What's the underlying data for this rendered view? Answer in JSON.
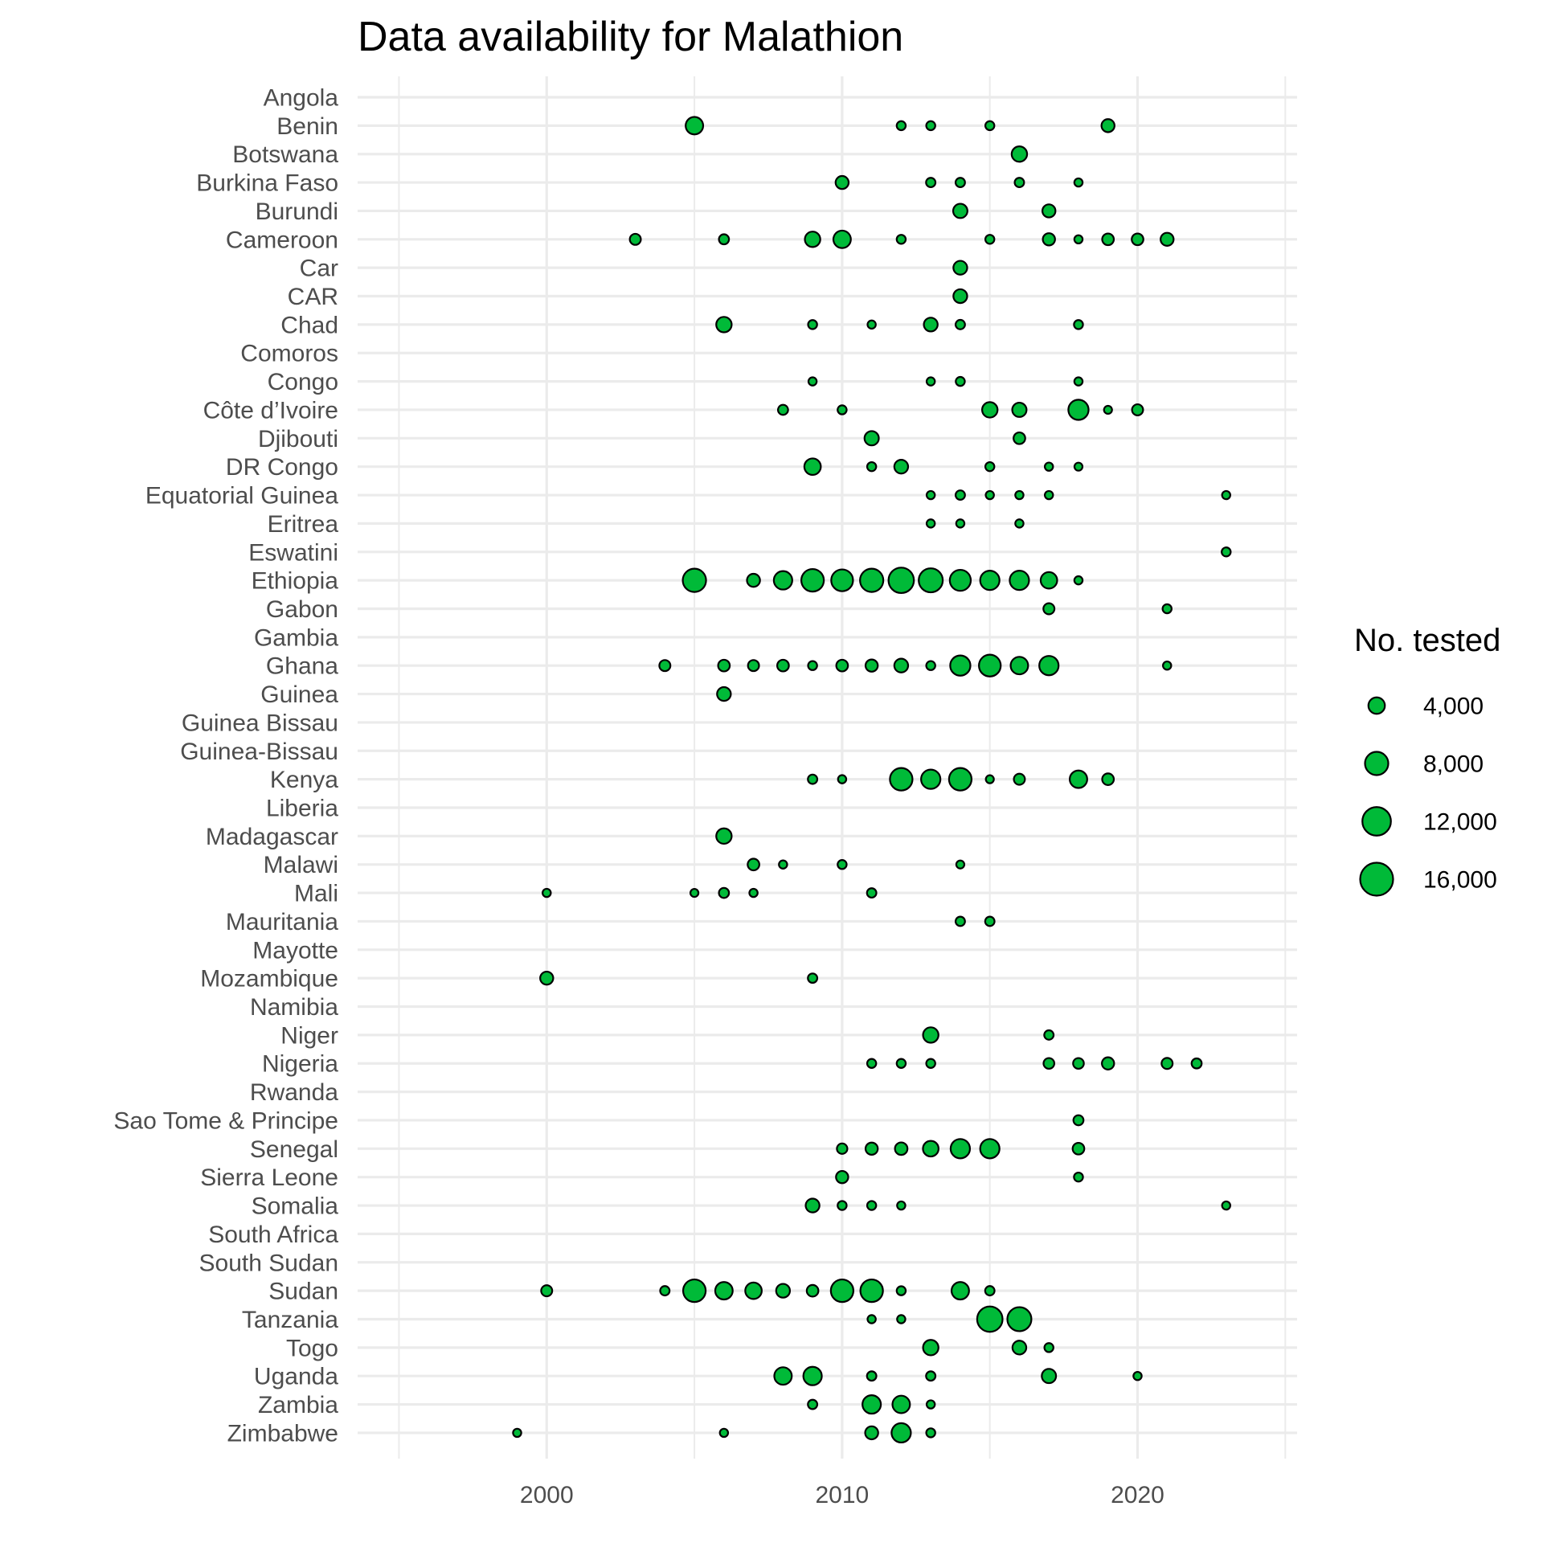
{
  "chart_data": {
    "type": "scatter",
    "title": "Data availability for Malathion",
    "xlabel": "",
    "ylabel": "",
    "xlim": [
      1993.6,
      2025.4
    ],
    "x_ticks": [
      2000,
      2010,
      2020
    ],
    "x_minor_ticks": [
      1995,
      2005,
      2015,
      2025
    ],
    "grid": true,
    "point_fill": "#00BA38",
    "point_stroke": "#000000",
    "categories": [
      "Angola",
      "Benin",
      "Botswana",
      "Burkina Faso",
      "Burundi",
      "Cameroon",
      "Car",
      "CAR",
      "Chad",
      "Comoros",
      "Congo",
      "Côte d’Ivoire",
      "Djibouti",
      "DR Congo",
      "Equatorial Guinea",
      "Eritrea",
      "Eswatini",
      "Ethiopia",
      "Gabon",
      "Gambia",
      "Ghana",
      "Guinea",
      "Guinea Bissau",
      "Guinea-Bissau",
      "Kenya",
      "Liberia",
      "Madagascar",
      "Malawi",
      "Mali",
      "Mauritania",
      "Mayotte",
      "Mozambique",
      "Namibia",
      "Niger",
      "Nigeria",
      "Rwanda",
      "Sao Tome & Principe",
      "Senegal",
      "Sierra Leone",
      "Somalia",
      "South Africa",
      "South Sudan",
      "Sudan",
      "Tanzania",
      "Togo",
      "Uganda",
      "Zambia",
      "Zimbabwe"
    ],
    "size_legend": {
      "title": "No. tested",
      "position": "right",
      "labels": [
        "4,000",
        "8,000",
        "12,000",
        "16,000"
      ],
      "values": [
        4000,
        8000,
        12000,
        16000
      ]
    },
    "points": [
      {
        "country": "Benin",
        "year": 2005,
        "n": 4500
      },
      {
        "country": "Benin",
        "year": 2012,
        "n": 1200
      },
      {
        "country": "Benin",
        "year": 2013,
        "n": 1200
      },
      {
        "country": "Benin",
        "year": 2015,
        "n": 1200
      },
      {
        "country": "Benin",
        "year": 2019,
        "n": 2500
      },
      {
        "country": "Botswana",
        "year": 2016,
        "n": 3500
      },
      {
        "country": "Burkina Faso",
        "year": 2010,
        "n": 2500
      },
      {
        "country": "Burkina Faso",
        "year": 2013,
        "n": 1300
      },
      {
        "country": "Burkina Faso",
        "year": 2014,
        "n": 1300
      },
      {
        "country": "Burkina Faso",
        "year": 2016,
        "n": 1300
      },
      {
        "country": "Burkina Faso",
        "year": 2018,
        "n": 1000
      },
      {
        "country": "Burundi",
        "year": 2014,
        "n": 3000
      },
      {
        "country": "Burundi",
        "year": 2017,
        "n": 2500
      },
      {
        "country": "Cameroon",
        "year": 2003,
        "n": 1800
      },
      {
        "country": "Cameroon",
        "year": 2006,
        "n": 1500
      },
      {
        "country": "Cameroon",
        "year": 2009,
        "n": 3500
      },
      {
        "country": "Cameroon",
        "year": 2010,
        "n": 4500
      },
      {
        "country": "Cameroon",
        "year": 2012,
        "n": 1200
      },
      {
        "country": "Cameroon",
        "year": 2015,
        "n": 1200
      },
      {
        "country": "Cameroon",
        "year": 2017,
        "n": 2200
      },
      {
        "country": "Cameroon",
        "year": 2018,
        "n": 1000
      },
      {
        "country": "Cameroon",
        "year": 2019,
        "n": 2000
      },
      {
        "country": "Cameroon",
        "year": 2020,
        "n": 2000
      },
      {
        "country": "Cameroon",
        "year": 2021,
        "n": 2500
      },
      {
        "country": "Car",
        "year": 2014,
        "n": 2800
      },
      {
        "country": "CAR",
        "year": 2014,
        "n": 2800
      },
      {
        "country": "Chad",
        "year": 2006,
        "n": 3500
      },
      {
        "country": "Chad",
        "year": 2009,
        "n": 1200
      },
      {
        "country": "Chad",
        "year": 2011,
        "n": 1000
      },
      {
        "country": "Chad",
        "year": 2013,
        "n": 2800
      },
      {
        "country": "Chad",
        "year": 2014,
        "n": 1300
      },
      {
        "country": "Chad",
        "year": 2018,
        "n": 1200
      },
      {
        "country": "Congo",
        "year": 2009,
        "n": 1000
      },
      {
        "country": "Congo",
        "year": 2013,
        "n": 1000
      },
      {
        "country": "Congo",
        "year": 2014,
        "n": 1200
      },
      {
        "country": "Congo",
        "year": 2018,
        "n": 1000
      },
      {
        "country": "Côte d’Ivoire",
        "year": 2008,
        "n": 1500
      },
      {
        "country": "Côte d’Ivoire",
        "year": 2010,
        "n": 1200
      },
      {
        "country": "Côte d’Ivoire",
        "year": 2015,
        "n": 3500
      },
      {
        "country": "Côte d’Ivoire",
        "year": 2016,
        "n": 3000
      },
      {
        "country": "Côte d’Ivoire",
        "year": 2018,
        "n": 6000
      },
      {
        "country": "Côte d’Ivoire",
        "year": 2019,
        "n": 900
      },
      {
        "country": "Côte d’Ivoire",
        "year": 2020,
        "n": 1800
      },
      {
        "country": "Djibouti",
        "year": 2011,
        "n": 3000
      },
      {
        "country": "Djibouti",
        "year": 2016,
        "n": 2000
      },
      {
        "country": "DR Congo",
        "year": 2009,
        "n": 4000
      },
      {
        "country": "DR Congo",
        "year": 2011,
        "n": 1200
      },
      {
        "country": "DR Congo",
        "year": 2012,
        "n": 2800
      },
      {
        "country": "DR Congo",
        "year": 2015,
        "n": 1200
      },
      {
        "country": "DR Congo",
        "year": 2017,
        "n": 1000
      },
      {
        "country": "DR Congo",
        "year": 2018,
        "n": 900
      },
      {
        "country": "Equatorial Guinea",
        "year": 2013,
        "n": 1000
      },
      {
        "country": "Equatorial Guinea",
        "year": 2014,
        "n": 1300
      },
      {
        "country": "Equatorial Guinea",
        "year": 2015,
        "n": 1000
      },
      {
        "country": "Equatorial Guinea",
        "year": 2016,
        "n": 1000
      },
      {
        "country": "Equatorial Guinea",
        "year": 2017,
        "n": 1000
      },
      {
        "country": "Equatorial Guinea",
        "year": 2023,
        "n": 1000
      },
      {
        "country": "Eritrea",
        "year": 2013,
        "n": 1000
      },
      {
        "country": "Eritrea",
        "year": 2014,
        "n": 1000
      },
      {
        "country": "Eritrea",
        "year": 2016,
        "n": 1000
      },
      {
        "country": "Eswatini",
        "year": 2023,
        "n": 1200
      },
      {
        "country": "Ethiopia",
        "year": 2005,
        "n": 8000
      },
      {
        "country": "Ethiopia",
        "year": 2007,
        "n": 2500
      },
      {
        "country": "Ethiopia",
        "year": 2008,
        "n": 5000
      },
      {
        "country": "Ethiopia",
        "year": 2009,
        "n": 7500
      },
      {
        "country": "Ethiopia",
        "year": 2010,
        "n": 7000
      },
      {
        "country": "Ethiopia",
        "year": 2011,
        "n": 8000
      },
      {
        "country": "Ethiopia",
        "year": 2012,
        "n": 9500
      },
      {
        "country": "Ethiopia",
        "year": 2013,
        "n": 8500
      },
      {
        "country": "Ethiopia",
        "year": 2014,
        "n": 6500
      },
      {
        "country": "Ethiopia",
        "year": 2015,
        "n": 5500
      },
      {
        "country": "Ethiopia",
        "year": 2016,
        "n": 5500
      },
      {
        "country": "Ethiopia",
        "year": 2017,
        "n": 4000
      },
      {
        "country": "Ethiopia",
        "year": 2018,
        "n": 1000
      },
      {
        "country": "Gabon",
        "year": 2017,
        "n": 1800
      },
      {
        "country": "Gabon",
        "year": 2021,
        "n": 1200
      },
      {
        "country": "Ghana",
        "year": 2004,
        "n": 1800
      },
      {
        "country": "Ghana",
        "year": 2006,
        "n": 2000
      },
      {
        "country": "Ghana",
        "year": 2007,
        "n": 1800
      },
      {
        "country": "Ghana",
        "year": 2008,
        "n": 2000
      },
      {
        "country": "Ghana",
        "year": 2009,
        "n": 1200
      },
      {
        "country": "Ghana",
        "year": 2010,
        "n": 2000
      },
      {
        "country": "Ghana",
        "year": 2011,
        "n": 2200
      },
      {
        "country": "Ghana",
        "year": 2012,
        "n": 2800
      },
      {
        "country": "Ghana",
        "year": 2013,
        "n": 1200
      },
      {
        "country": "Ghana",
        "year": 2014,
        "n": 6000
      },
      {
        "country": "Ghana",
        "year": 2015,
        "n": 7000
      },
      {
        "country": "Ghana",
        "year": 2016,
        "n": 4500
      },
      {
        "country": "Ghana",
        "year": 2017,
        "n": 5500
      },
      {
        "country": "Ghana",
        "year": 2021,
        "n": 1000
      },
      {
        "country": "Guinea",
        "year": 2006,
        "n": 2800
      },
      {
        "country": "Kenya",
        "year": 2009,
        "n": 1300
      },
      {
        "country": "Kenya",
        "year": 2010,
        "n": 1000
      },
      {
        "country": "Kenya",
        "year": 2012,
        "n": 7500
      },
      {
        "country": "Kenya",
        "year": 2013,
        "n": 5500
      },
      {
        "country": "Kenya",
        "year": 2014,
        "n": 7500
      },
      {
        "country": "Kenya",
        "year": 2015,
        "n": 900
      },
      {
        "country": "Kenya",
        "year": 2016,
        "n": 1800
      },
      {
        "country": "Kenya",
        "year": 2018,
        "n": 4500
      },
      {
        "country": "Kenya",
        "year": 2019,
        "n": 2000
      },
      {
        "country": "Madagascar",
        "year": 2006,
        "n": 3500
      },
      {
        "country": "Malawi",
        "year": 2007,
        "n": 2000
      },
      {
        "country": "Malawi",
        "year": 2008,
        "n": 1000
      },
      {
        "country": "Malawi",
        "year": 2010,
        "n": 1200
      },
      {
        "country": "Malawi",
        "year": 2014,
        "n": 800
      },
      {
        "country": "Mali",
        "year": 2000,
        "n": 1000
      },
      {
        "country": "Mali",
        "year": 2005,
        "n": 800
      },
      {
        "country": "Mali",
        "year": 2006,
        "n": 1500
      },
      {
        "country": "Mali",
        "year": 2007,
        "n": 1000
      },
      {
        "country": "Mali",
        "year": 2011,
        "n": 1300
      },
      {
        "country": "Mauritania",
        "year": 2014,
        "n": 1300
      },
      {
        "country": "Mauritania",
        "year": 2015,
        "n": 1300
      },
      {
        "country": "Mozambique",
        "year": 2000,
        "n": 2500
      },
      {
        "country": "Mozambique",
        "year": 2009,
        "n": 1300
      },
      {
        "country": "Niger",
        "year": 2013,
        "n": 3500
      },
      {
        "country": "Niger",
        "year": 2017,
        "n": 1300
      },
      {
        "country": "Nigeria",
        "year": 2011,
        "n": 1200
      },
      {
        "country": "Nigeria",
        "year": 2012,
        "n": 1200
      },
      {
        "country": "Nigeria",
        "year": 2013,
        "n": 1200
      },
      {
        "country": "Nigeria",
        "year": 2017,
        "n": 1700
      },
      {
        "country": "Nigeria",
        "year": 2018,
        "n": 1700
      },
      {
        "country": "Nigeria",
        "year": 2019,
        "n": 2200
      },
      {
        "country": "Nigeria",
        "year": 2021,
        "n": 1800
      },
      {
        "country": "Nigeria",
        "year": 2022,
        "n": 1500
      },
      {
        "country": "Sao Tome & Principe",
        "year": 2018,
        "n": 1500
      },
      {
        "country": "Senegal",
        "year": 2010,
        "n": 1600
      },
      {
        "country": "Senegal",
        "year": 2011,
        "n": 2200
      },
      {
        "country": "Senegal",
        "year": 2012,
        "n": 2300
      },
      {
        "country": "Senegal",
        "year": 2013,
        "n": 3600
      },
      {
        "country": "Senegal",
        "year": 2014,
        "n": 5500
      },
      {
        "country": "Senegal",
        "year": 2015,
        "n": 5500
      },
      {
        "country": "Senegal",
        "year": 2018,
        "n": 2000
      },
      {
        "country": "Sierra Leone",
        "year": 2010,
        "n": 2200
      },
      {
        "country": "Sierra Leone",
        "year": 2018,
        "n": 1200
      },
      {
        "country": "Somalia",
        "year": 2009,
        "n": 2800
      },
      {
        "country": "Somalia",
        "year": 2010,
        "n": 1200
      },
      {
        "country": "Somalia",
        "year": 2011,
        "n": 1200
      },
      {
        "country": "Somalia",
        "year": 2012,
        "n": 1000
      },
      {
        "country": "Somalia",
        "year": 2023,
        "n": 1000
      },
      {
        "country": "Sudan",
        "year": 2000,
        "n": 1800
      },
      {
        "country": "Sudan",
        "year": 2004,
        "n": 1300
      },
      {
        "country": "Sudan",
        "year": 2005,
        "n": 7500
      },
      {
        "country": "Sudan",
        "year": 2006,
        "n": 4500
      },
      {
        "country": "Sudan",
        "year": 2007,
        "n": 4000
      },
      {
        "country": "Sudan",
        "year": 2008,
        "n": 2800
      },
      {
        "country": "Sudan",
        "year": 2009,
        "n": 2000
      },
      {
        "country": "Sudan",
        "year": 2010,
        "n": 7500
      },
      {
        "country": "Sudan",
        "year": 2011,
        "n": 7500
      },
      {
        "country": "Sudan",
        "year": 2012,
        "n": 1200
      },
      {
        "country": "Sudan",
        "year": 2014,
        "n": 4500
      },
      {
        "country": "Sudan",
        "year": 2015,
        "n": 1300
      },
      {
        "country": "Tanzania",
        "year": 2011,
        "n": 1000
      },
      {
        "country": "Tanzania",
        "year": 2012,
        "n": 1000
      },
      {
        "country": "Tanzania",
        "year": 2015,
        "n": 9500
      },
      {
        "country": "Tanzania",
        "year": 2016,
        "n": 8500
      },
      {
        "country": "Togo",
        "year": 2013,
        "n": 3500
      },
      {
        "country": "Togo",
        "year": 2016,
        "n": 2800
      },
      {
        "country": "Togo",
        "year": 2017,
        "n": 1200
      },
      {
        "country": "Uganda",
        "year": 2008,
        "n": 4500
      },
      {
        "country": "Uganda",
        "year": 2009,
        "n": 5000
      },
      {
        "country": "Uganda",
        "year": 2011,
        "n": 1300
      },
      {
        "country": "Uganda",
        "year": 2013,
        "n": 1300
      },
      {
        "country": "Uganda",
        "year": 2017,
        "n": 3000
      },
      {
        "country": "Uganda",
        "year": 2020,
        "n": 1000
      },
      {
        "country": "Zambia",
        "year": 2009,
        "n": 1300
      },
      {
        "country": "Zambia",
        "year": 2011,
        "n": 5000
      },
      {
        "country": "Zambia",
        "year": 2012,
        "n": 4500
      },
      {
        "country": "Zambia",
        "year": 2013,
        "n": 1000
      },
      {
        "country": "Zimbabwe",
        "year": 1999,
        "n": 1000
      },
      {
        "country": "Zimbabwe",
        "year": 2006,
        "n": 1000
      },
      {
        "country": "Zimbabwe",
        "year": 2011,
        "n": 2500
      },
      {
        "country": "Zimbabwe",
        "year": 2012,
        "n": 5500
      },
      {
        "country": "Zimbabwe",
        "year": 2013,
        "n": 1200
      }
    ]
  }
}
